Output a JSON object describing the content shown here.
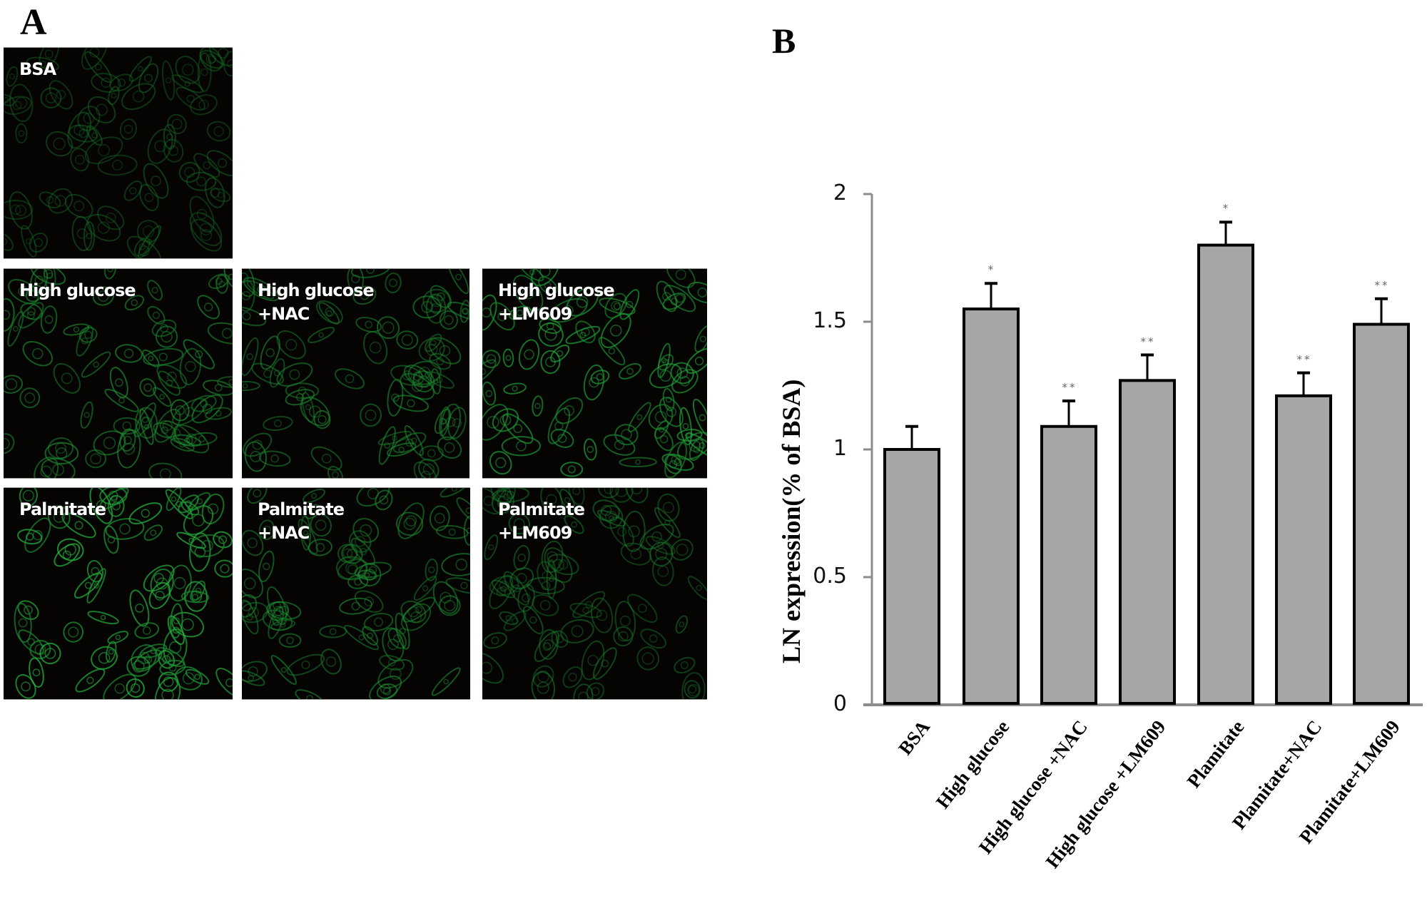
{
  "panel_a": {
    "letter": "A",
    "images": [
      {
        "label": "BSA",
        "brightness": 0.35
      },
      {
        "label": "High glucose",
        "brightness": 0.6
      },
      {
        "label": "High glucose\n+NAC",
        "brightness": 0.55
      },
      {
        "label": "High glucose\n+LM609",
        "brightness": 0.7
      },
      {
        "label": "Palmitate",
        "brightness": 0.8
      },
      {
        "label": "Palmitate\n+NAC",
        "brightness": 0.55
      },
      {
        "label": "Palmitate\n+LM609",
        "brightness": 0.45
      }
    ]
  },
  "panel_b": {
    "letter": "B"
  },
  "colors": {
    "bar_fill": "#a6a6a6",
    "bar_stroke": "#000000",
    "axis": "#8c8c8c",
    "fluorescence": "#2fbf4f",
    "image_bg": "#060403"
  },
  "chart_data": {
    "type": "bar",
    "title": "",
    "xlabel": "",
    "ylabel": "LN expression(% of BSA)",
    "ylim": [
      0,
      2
    ],
    "yticks": [
      0,
      0.5,
      1,
      1.5,
      2
    ],
    "ytick_labels": [
      "0",
      "0.5",
      "1",
      "1.5",
      "2"
    ],
    "grid": false,
    "legend": null,
    "categories": [
      "BSA",
      "High glucose",
      "High glucose +NAC",
      "High glucose +LM609",
      "Plamitate",
      "Plamitate+NAC",
      "Plamitate+LM609"
    ],
    "values": [
      1.0,
      1.55,
      1.09,
      1.27,
      1.8,
      1.21,
      1.49
    ],
    "errors": [
      0.09,
      0.1,
      0.1,
      0.1,
      0.09,
      0.09,
      0.1
    ],
    "significance": [
      "",
      "*",
      "**",
      "**",
      "*",
      "**",
      "**"
    ]
  }
}
